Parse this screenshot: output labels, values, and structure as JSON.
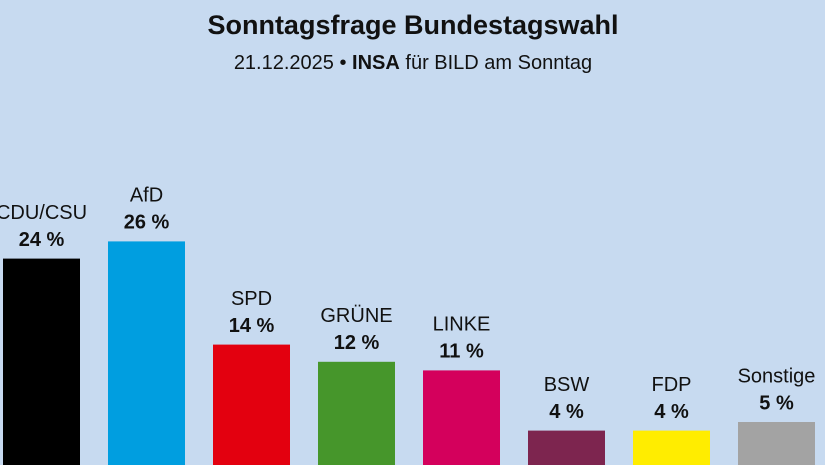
{
  "chart_data": {
    "type": "bar",
    "title": "Sonntagsfrage Bundestagswahl",
    "subtitle": {
      "date": "21.12.2025 •",
      "pollster": "INSA",
      "client": "für BILD am Sonntag"
    },
    "categories": [
      "CDU/CSU",
      "AfD",
      "SPD",
      "GRÜNE",
      "LINKE",
      "BSW",
      "FDP",
      "Sonstige"
    ],
    "values": [
      24,
      26,
      14,
      12,
      11,
      4,
      4,
      5
    ],
    "value_labels": [
      "24 %",
      "26 %",
      "14 %",
      "12 %",
      "11 %",
      "4 %",
      "4 %",
      "5 %"
    ],
    "colors": [
      "#000000",
      "#009ee0",
      "#e3000f",
      "#46962b",
      "#d4005c",
      "#7d254f",
      "#ffed00",
      "#a3a3a3"
    ]
  }
}
